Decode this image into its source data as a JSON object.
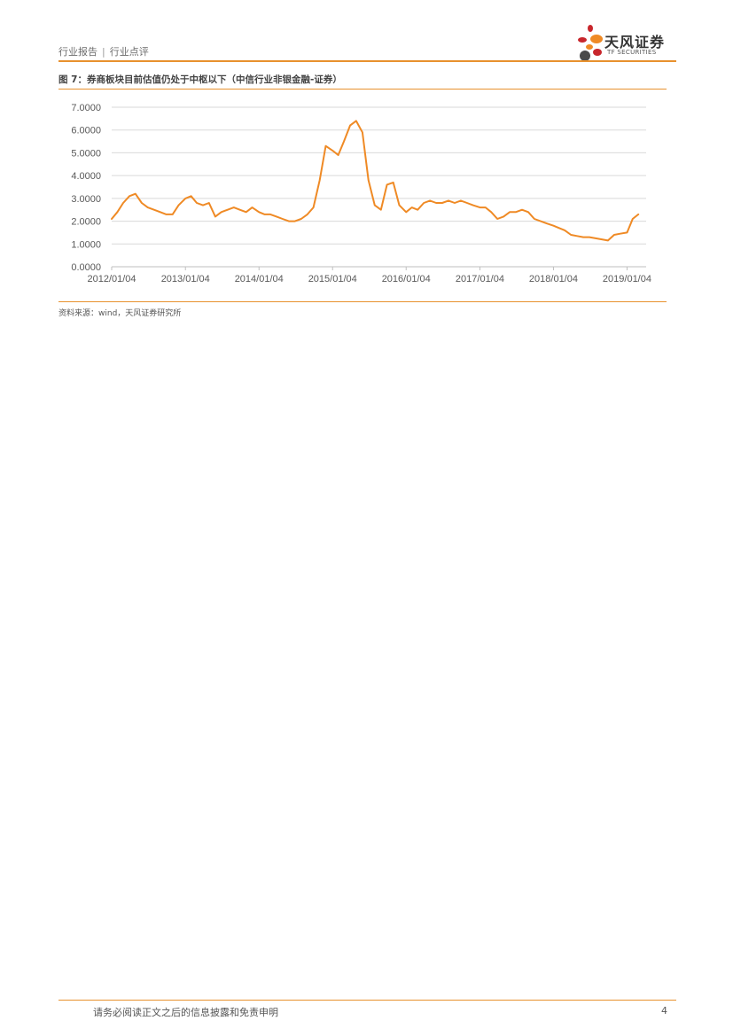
{
  "header": {
    "breadcrumb_part1": "行业报告",
    "breadcrumb_sep": "|",
    "breadcrumb_part2": "行业点评",
    "logo_name": "天风证券",
    "logo_en": "TF SECURITIES",
    "colors": {
      "accent": "#e8912e",
      "logo_red": "#c8262c",
      "logo_orange": "#ef8a25",
      "logo_gray": "#4a4a4a"
    }
  },
  "figure": {
    "title": "图 7：券商板块目前估值仍处于中枢以下（中信行业非银金融-证券）",
    "source": "资料来源：wind，天风证券研究所"
  },
  "chart_data": {
    "type": "line",
    "title": "",
    "xlabel": "",
    "ylabel": "",
    "ylim": [
      0,
      7
    ],
    "yticks": [
      "0.0000",
      "1.0000",
      "2.0000",
      "3.0000",
      "4.0000",
      "5.0000",
      "6.0000",
      "7.0000"
    ],
    "xticks": [
      "2012/01/04",
      "2013/01/04",
      "2014/01/04",
      "2015/01/04",
      "2016/01/04",
      "2017/01/04",
      "2018/01/04",
      "2019/01/04"
    ],
    "grid": "horizontal",
    "legend": "none",
    "series": [
      {
        "color": "#ef8a25",
        "x": [
          "2012/01/04",
          "2012/02/01",
          "2012/03/01",
          "2012/04/01",
          "2012/05/01",
          "2012/06/01",
          "2012/07/01",
          "2012/08/01",
          "2012/09/01",
          "2012/10/01",
          "2012/11/01",
          "2012/12/01",
          "2013/01/04",
          "2013/02/01",
          "2013/03/01",
          "2013/04/01",
          "2013/05/01",
          "2013/06/01",
          "2013/07/01",
          "2013/08/01",
          "2013/09/01",
          "2013/10/01",
          "2013/11/01",
          "2013/12/01",
          "2014/01/04",
          "2014/02/01",
          "2014/03/01",
          "2014/04/01",
          "2014/05/01",
          "2014/06/01",
          "2014/07/01",
          "2014/08/01",
          "2014/09/01",
          "2014/10/01",
          "2014/11/01",
          "2014/12/01",
          "2015/01/04",
          "2015/02/01",
          "2015/03/01",
          "2015/04/01",
          "2015/05/01",
          "2015/06/01",
          "2015/07/01",
          "2015/08/01",
          "2015/09/01",
          "2015/10/01",
          "2015/11/01",
          "2015/12/01",
          "2016/01/04",
          "2016/02/01",
          "2016/03/01",
          "2016/04/01",
          "2016/05/01",
          "2016/06/01",
          "2016/07/01",
          "2016/08/01",
          "2016/09/01",
          "2016/10/01",
          "2016/11/01",
          "2016/12/01",
          "2017/01/04",
          "2017/02/01",
          "2017/03/01",
          "2017/04/01",
          "2017/05/01",
          "2017/06/01",
          "2017/07/01",
          "2017/08/01",
          "2017/09/01",
          "2017/10/01",
          "2017/11/01",
          "2017/12/01",
          "2018/01/04",
          "2018/02/01",
          "2018/03/01",
          "2018/04/01",
          "2018/05/01",
          "2018/06/01",
          "2018/07/01",
          "2018/08/01",
          "2018/09/01",
          "2018/10/01",
          "2018/11/01",
          "2018/12/01",
          "2019/01/04",
          "2019/02/01",
          "2019/03/01"
        ],
        "values": [
          2.1,
          2.4,
          2.8,
          3.1,
          3.2,
          2.8,
          2.6,
          2.5,
          2.4,
          2.3,
          2.3,
          2.7,
          3.0,
          3.1,
          2.8,
          2.7,
          2.8,
          2.2,
          2.4,
          2.5,
          2.6,
          2.5,
          2.4,
          2.6,
          2.4,
          2.3,
          2.3,
          2.2,
          2.1,
          2.0,
          2.0,
          2.1,
          2.3,
          2.6,
          3.8,
          5.3,
          5.1,
          4.9,
          5.5,
          6.2,
          6.4,
          5.9,
          3.8,
          2.7,
          2.5,
          3.6,
          3.7,
          2.7,
          2.4,
          2.6,
          2.5,
          2.8,
          2.9,
          2.8,
          2.8,
          2.9,
          2.8,
          2.9,
          2.8,
          2.7,
          2.6,
          2.6,
          2.4,
          2.1,
          2.2,
          2.4,
          2.4,
          2.5,
          2.4,
          2.1,
          2.0,
          1.9,
          1.8,
          1.7,
          1.6,
          1.4,
          1.35,
          1.3,
          1.3,
          1.25,
          1.2,
          1.15,
          1.4,
          1.45,
          1.5,
          2.1,
          2.3
        ]
      }
    ]
  },
  "footer": {
    "disclaimer": "请务必阅读正文之后的信息披露和免责申明",
    "page_number": "4"
  }
}
